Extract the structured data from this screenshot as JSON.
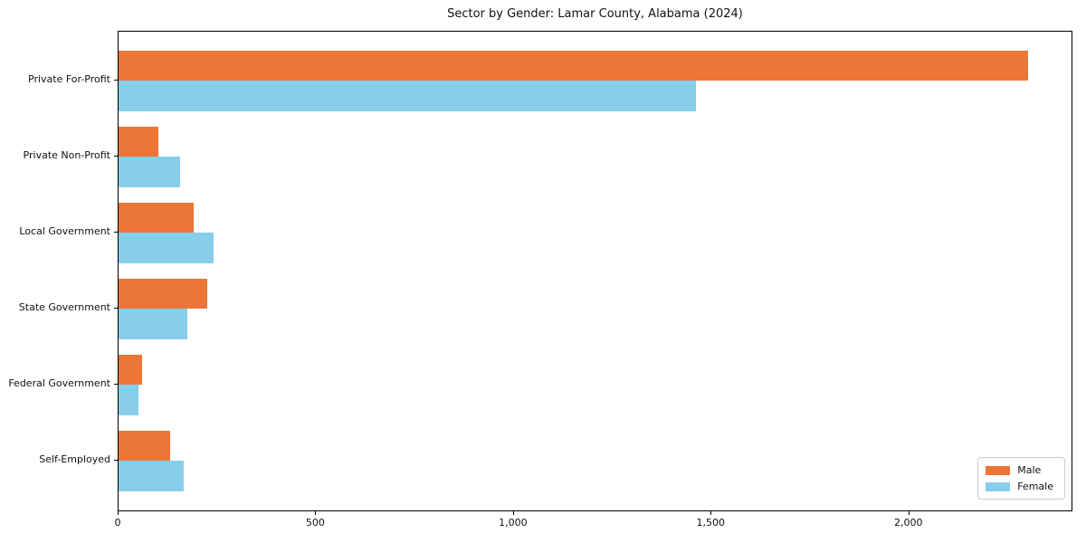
{
  "title": "Sector by Gender: Lamar County, Alabama (2024)",
  "chart_data": {
    "type": "bar",
    "orientation": "horizontal",
    "title": "Sector by Gender: Lamar County, Alabama (2024)",
    "categories": [
      "Private For-Profit",
      "Private Non-Profit",
      "Local Government",
      "State Government",
      "Federal Government",
      "Self-Employed"
    ],
    "series": [
      {
        "name": "Male",
        "color": "#EC7637",
        "values": [
          2300,
          100,
          190,
          225,
          60,
          130
        ]
      },
      {
        "name": "Female",
        "color": "#87CEEB",
        "values": [
          1460,
          155,
          240,
          175,
          50,
          165
        ]
      }
    ],
    "xlabel": "",
    "ylabel": "",
    "xlim": [
      0,
      2415
    ],
    "xticks": [
      0,
      500,
      1000,
      1500,
      2000
    ],
    "xtick_labels": [
      "0",
      "500",
      "1,000",
      "1,500",
      "2,000"
    ],
    "grid": false,
    "legend_position": "lower right",
    "background_color": "#ffffff",
    "spine_color": "#000000"
  }
}
